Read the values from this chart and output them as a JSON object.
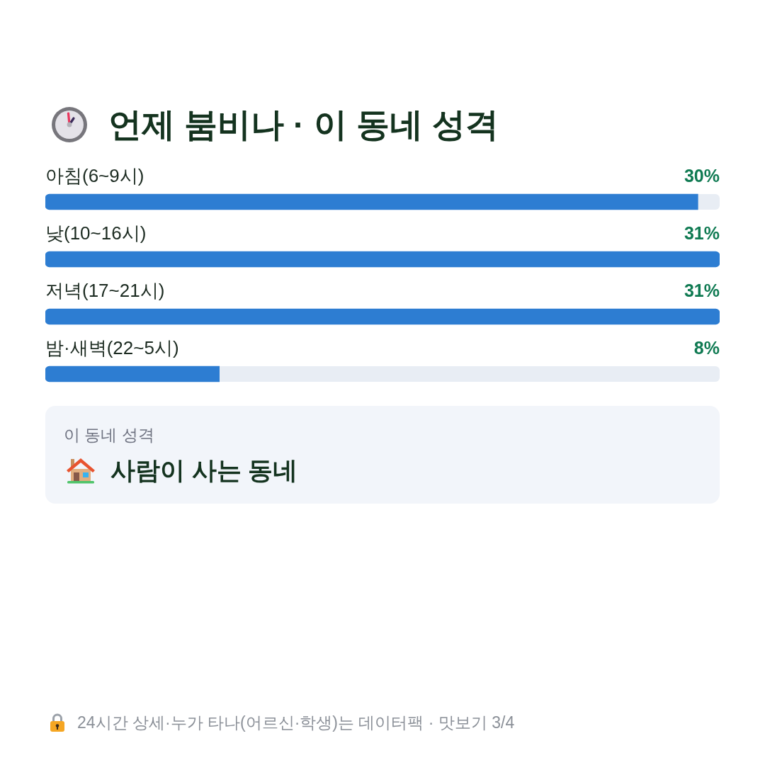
{
  "chart_data": [
    {
      "type": "bar",
      "title": "언제 붐비나 · 이 동네 성격",
      "orientation": "horizontal",
      "categories": [
        "아침(6~9시)",
        "낮(10~16시)",
        "저녁(17~21시)",
        "밤·새벽(22~5시)"
      ],
      "values": [
        30,
        31,
        31,
        8
      ],
      "value_labels": [
        "30%",
        "31%",
        "31%",
        "8%"
      ],
      "color": "#2d7dd2",
      "tick_labels": "y",
      "annotations": [
        "24시간 상세·누가 타나(어르신·학생)는 데이터팩 · 맛보기 3/4"
      ]
    },
    {
      "type": "other",
      "title": "이 동네 성격",
      "annotations": [
        "사람이 사는 동네"
      ]
    }
  ]
}
